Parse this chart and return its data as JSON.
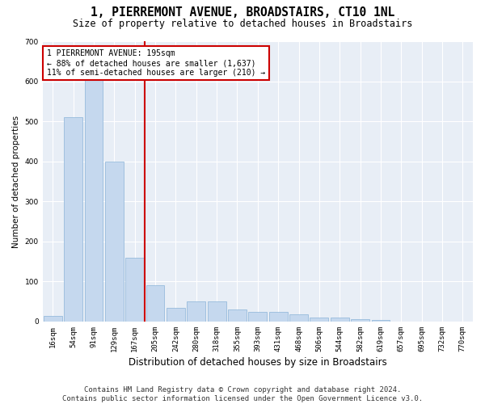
{
  "title": "1, PIERREMONT AVENUE, BROADSTAIRS, CT10 1NL",
  "subtitle": "Size of property relative to detached houses in Broadstairs",
  "xlabel": "Distribution of detached houses by size in Broadstairs",
  "ylabel": "Number of detached properties",
  "bar_categories": [
    "16sqm",
    "54sqm",
    "91sqm",
    "129sqm",
    "167sqm",
    "205sqm",
    "242sqm",
    "280sqm",
    "318sqm",
    "355sqm",
    "393sqm",
    "431sqm",
    "468sqm",
    "506sqm",
    "544sqm",
    "582sqm",
    "619sqm",
    "657sqm",
    "695sqm",
    "732sqm",
    "770sqm"
  ],
  "bar_values": [
    15,
    510,
    630,
    400,
    160,
    90,
    35,
    50,
    50,
    30,
    25,
    25,
    18,
    10,
    10,
    5,
    3,
    0,
    0,
    0,
    0
  ],
  "bar_color": "#c5d8ee",
  "bar_edge_color": "#8ab4d8",
  "vline_color": "#cc0000",
  "annotation_text": "1 PIERREMONT AVENUE: 195sqm\n← 88% of detached houses are smaller (1,637)\n11% of semi-detached houses are larger (210) →",
  "annotation_box_color": "#ffffff",
  "annotation_box_edge": "#cc0000",
  "ylim": [
    0,
    700
  ],
  "yticks": [
    0,
    100,
    200,
    300,
    400,
    500,
    600,
    700
  ],
  "bg_color": "#e8eef6",
  "grid_color": "#ffffff",
  "footnote": "Contains HM Land Registry data © Crown copyright and database right 2024.\nContains public sector information licensed under the Open Government Licence v3.0.",
  "title_fontsize": 10.5,
  "subtitle_fontsize": 8.5,
  "xlabel_fontsize": 8.5,
  "ylabel_fontsize": 7.5,
  "tick_fontsize": 6.5,
  "annotation_fontsize": 7,
  "footnote_fontsize": 6.5
}
